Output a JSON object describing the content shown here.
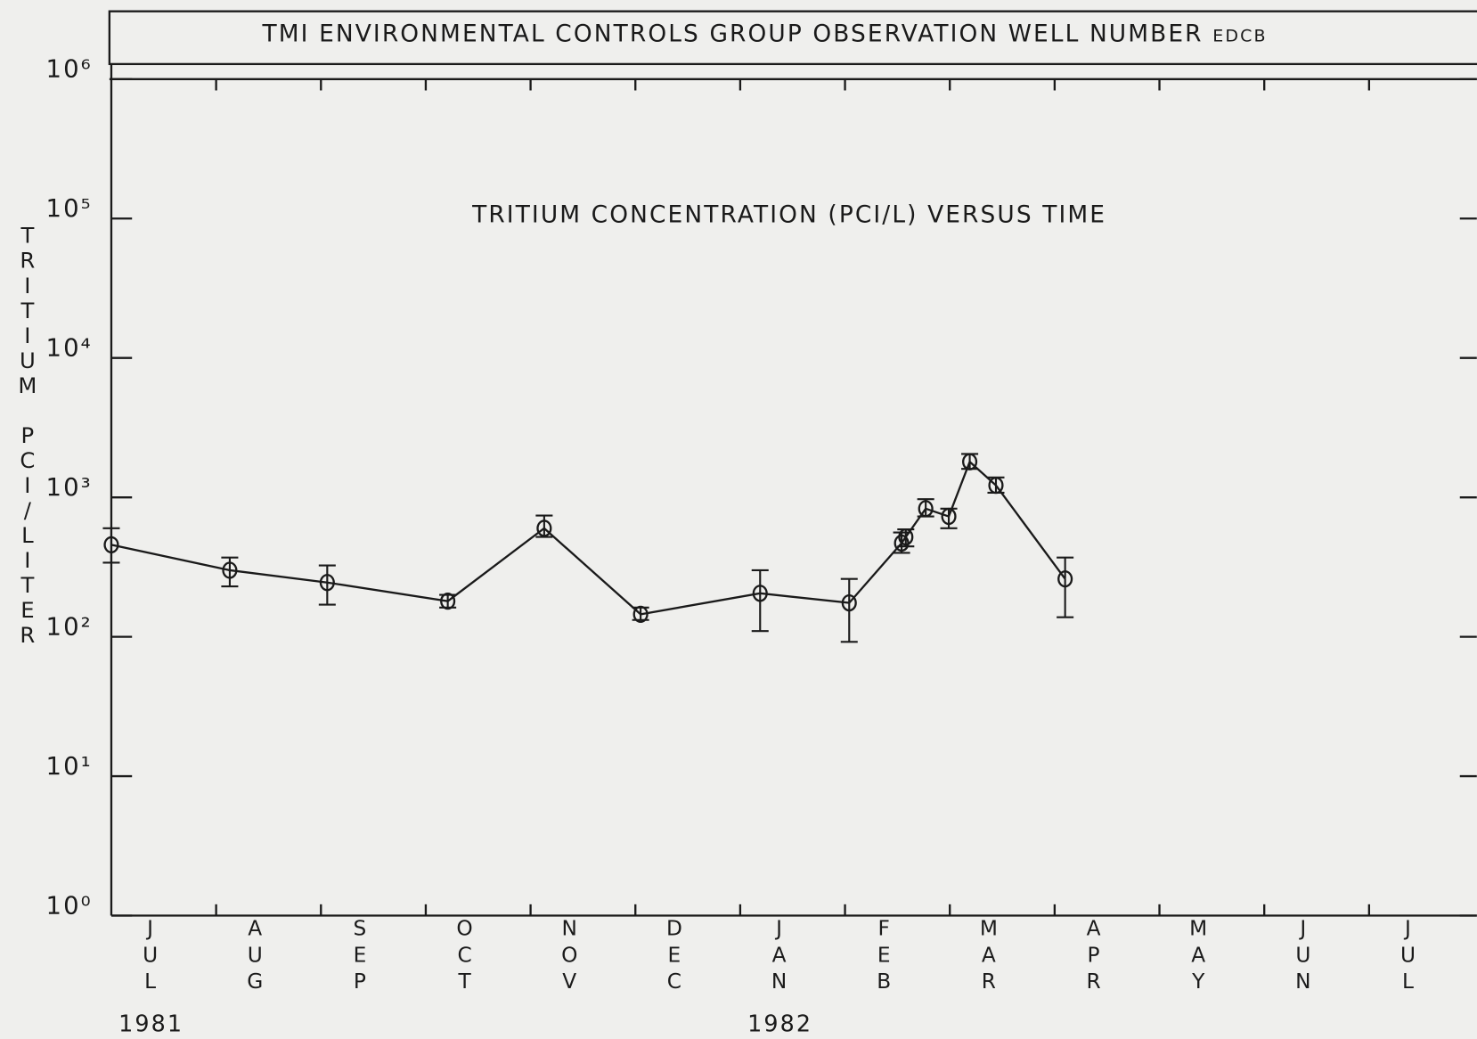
{
  "chart_data": {
    "type": "line",
    "header": "TMI ENVIRONMENTAL CONTROLS GROUP  OBSERVATION WELL NUMBER",
    "header_suffix": "EDCB",
    "title": "TRITIUM CONCENTRATION (PCI/L) VERSUS TIME",
    "y_label": "TRITIUM PCI/LITER",
    "categories": [
      "JUL",
      "AUG",
      "SEP",
      "OCT",
      "NOV",
      "DEC",
      "JAN",
      "FEB",
      "MAR",
      "APR",
      "MAY",
      "JUN",
      "JUL"
    ],
    "years": [
      "1981",
      "1982"
    ],
    "xlim": [
      0,
      13
    ],
    "x": [
      0.0,
      1.13,
      2.06,
      3.21,
      4.13,
      5.05,
      6.19,
      7.04,
      7.54,
      7.58,
      7.77,
      7.99,
      8.19,
      8.44,
      9.1
    ],
    "values": [
      457,
      300,
      245,
      180,
      600,
      145,
      205,
      175,
      470,
      520,
      830,
      730,
      1800,
      1220,
      260
    ],
    "upper": [
      600,
      370,
      325,
      200,
      740,
      162,
      300,
      260,
      560,
      590,
      970,
      830,
      2050,
      1390,
      370
    ],
    "lower": [
      340,
      230,
      170,
      162,
      520,
      132,
      110,
      92,
      400,
      445,
      730,
      600,
      1600,
      1080,
      138
    ],
    "ylim": [
      1,
      1000000
    ],
    "yticks": [
      {
        "value": 1,
        "label": "10⁰"
      },
      {
        "value": 10,
        "label": "10¹"
      },
      {
        "value": 100,
        "label": "10²"
      },
      {
        "value": 1000,
        "label": "10³"
      },
      {
        "value": 10000,
        "label": "10⁴"
      },
      {
        "value": 100000,
        "label": "10⁵"
      },
      {
        "value": 1000000,
        "label": "10⁶"
      }
    ],
    "log_y": true,
    "color": "#1a1a1a"
  }
}
